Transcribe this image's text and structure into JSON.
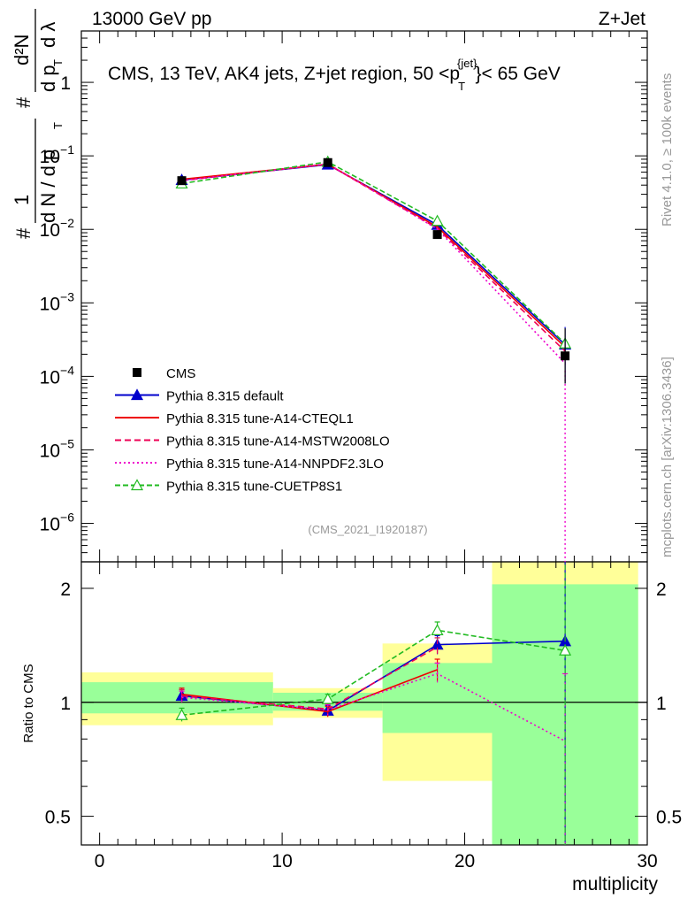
{
  "header": {
    "left": "13000 GeV pp",
    "right": "Z+Jet",
    "title_pre": "CMS, 13 TeV, AK4 jets, Z+jet region, 50 <p",
    "title_sub": "T",
    "title_sup": "{jet}",
    "title_post": "}< 65 GeV"
  },
  "side_labels": {
    "rivet": "Rivet 4.1.0, ≥ 100k events",
    "mcplots": "mcplots.cern.ch [arXiv:1306.3436]"
  },
  "watermark": "(CMS_2021_I1920187)",
  "ylabel_main": {
    "hash1": "#",
    "one": "1",
    "dN": "d N / d p",
    "T1": "T",
    "hash2": "#",
    "d2N": "d²N",
    "dpT": "d p",
    "T2": "T",
    "dl": "d λ"
  },
  "ylabel_ratio": "Ratio to CMS",
  "xlabel": "multiplicity",
  "colors": {
    "cms": "#000000",
    "default": "#0000cc",
    "cteql1": "#ee0000",
    "mstw": "#ee0055",
    "nnpdf": "#ee00cc",
    "cuetp8s1": "#22bb22",
    "band_inner": "#99ff99",
    "band_outer": "#ffff99"
  },
  "chart_data": {
    "type": "line",
    "title": "CMS, 13 TeV, AK4 jets, Z+jet region, 50 < pT(jet) < 65 GeV",
    "xlabel": "multiplicity",
    "ylabel": "1/(dN/dpT) d²N/(dpT dλ)",
    "xlim": [
      -1,
      30
    ],
    "ylim_main": [
      3e-07,
      5
    ],
    "yscale_main": "log",
    "ylim_ratio": [
      0.42,
      2.35
    ],
    "yscale_ratio": "log",
    "x_ticks": [
      "0",
      "10",
      "20",
      "30"
    ],
    "main_y_ticks": [
      {
        "v": 1,
        "m": "1",
        "e": ""
      },
      {
        "v": 0.1,
        "m": "10",
        "e": "−1"
      },
      {
        "v": 0.01,
        "m": "10",
        "e": "−2"
      },
      {
        "v": 0.001,
        "m": "10",
        "e": "−3"
      },
      {
        "v": 0.0001,
        "m": "10",
        "e": "−4"
      },
      {
        "v": 1e-05,
        "m": "10",
        "e": "−5"
      },
      {
        "v": 1e-06,
        "m": "10",
        "e": "−6"
      }
    ],
    "ratio_y_ticks": [
      {
        "v": 2,
        "label": "2"
      },
      {
        "v": 1,
        "label": "1"
      },
      {
        "v": 0.5,
        "label": "0.5"
      }
    ],
    "bins": [
      [
        -1,
        9.5
      ],
      [
        9.5,
        15.5
      ],
      [
        15.5,
        21.5
      ],
      [
        21.5,
        29.5
      ]
    ],
    "data": {
      "name": "CMS",
      "x": [
        4.5,
        12.5,
        18.5,
        25.5
      ],
      "y": [
        0.046,
        0.081,
        0.0085,
        0.00019
      ],
      "y_low": [
        0.044,
        0.078,
        0.0078,
        8e-05
      ],
      "y_high": [
        0.048,
        0.084,
        0.0093,
        0.00045
      ],
      "band_inner": [
        [
          0.935,
          1.13
        ],
        [
          0.95,
          1.06
        ],
        [
          0.83,
          1.27
        ],
        [
          0.39,
          2.05
        ]
      ],
      "band_outer": [
        [
          0.87,
          1.2
        ],
        [
          0.91,
          1.09
        ],
        [
          0.62,
          1.43
        ],
        [
          0.39,
          2.35
        ]
      ]
    },
    "series": [
      {
        "name": "Pythia 8.315 default",
        "key": "default",
        "dash": "",
        "marker": "triangle-filled",
        "x": [
          4.5,
          12.5,
          18.5,
          25.5
        ],
        "y": [
          0.047,
          0.076,
          0.0115,
          0.00027
        ],
        "ratio": [
          1.04,
          0.95,
          1.42,
          1.45
        ],
        "ratio_err": [
          0.04,
          0.03,
          0.08,
          1.3
        ]
      },
      {
        "name": "Pythia 8.315 tune-A14-CTEQL1",
        "key": "cteql1",
        "dash": "",
        "marker": "none",
        "x": [
          4.5,
          12.5,
          18.5,
          25.5
        ],
        "y": [
          0.048,
          0.077,
          0.0108,
          0.00025
        ],
        "ratio": [
          1.05,
          0.945,
          1.22,
          null
        ],
        "ratio_err": [
          0.04,
          0.03,
          0.08,
          null
        ]
      },
      {
        "name": "Pythia 8.315 tune-A14-MSTW2008LO",
        "key": "mstw",
        "dash": "7,4",
        "marker": "none",
        "x": [
          4.5,
          12.5,
          18.5,
          25.5
        ],
        "y": [
          0.046,
          0.077,
          0.0103,
          0.00022
        ],
        "ratio": [
          1.04,
          0.96,
          1.4,
          null
        ],
        "ratio_err": [
          0.04,
          0.03,
          0.08,
          null
        ]
      },
      {
        "name": "Pythia 8.315 tune-A14-NNPDF2.3LO",
        "key": "nnpdf",
        "dash": "2,3",
        "marker": "none",
        "x": [
          4.5,
          12.5,
          18.5,
          25.5
        ],
        "y": [
          0.046,
          0.078,
          0.0101,
          0.00015
        ],
        "ratio": [
          1.03,
          0.955,
          1.19,
          0.79
        ],
        "ratio_err": [
          0.04,
          0.03,
          0.08,
          0.4
        ]
      },
      {
        "name": "Pythia 8.315 tune-CUETP8S1",
        "key": "cuetp8s1",
        "dash": "6,3",
        "marker": "triangle-open",
        "x": [
          4.5,
          12.5,
          18.5,
          25.5
        ],
        "y": [
          0.042,
          0.083,
          0.013,
          0.00028
        ],
        "ratio": [
          0.925,
          1.02,
          1.55,
          1.37
        ],
        "ratio_err": [
          0.04,
          0.03,
          0.08,
          1.3
        ]
      }
    ],
    "legend_position": "lower-left",
    "legend": [
      "CMS",
      "Pythia 8.315 default",
      "Pythia 8.315 tune-A14-CTEQL1",
      "Pythia 8.315 tune-A14-MSTW2008LO",
      "Pythia 8.315 tune-A14-NNPDF2.3LO",
      "Pythia 8.315 tune-CUETP8S1"
    ]
  }
}
